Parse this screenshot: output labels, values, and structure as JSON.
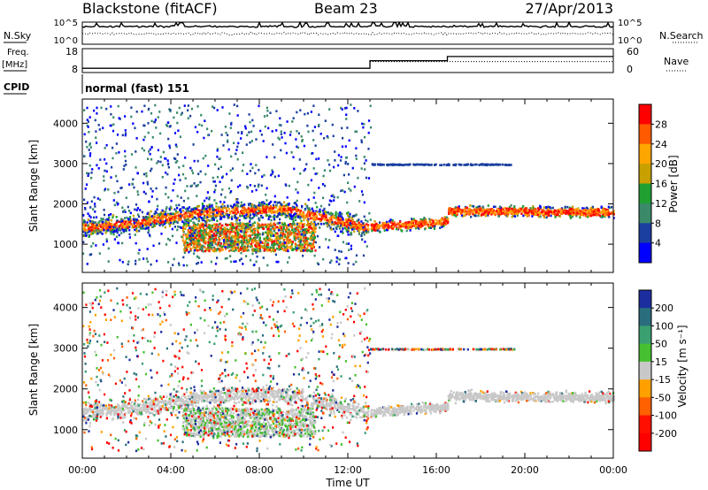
{
  "header": {
    "station": "Blackstone (fitACF)",
    "beam": "Beam 23",
    "date": "27/Apr/2013"
  },
  "labels": {
    "nsky": "N.Sky",
    "nsearch": "N.Search",
    "freq_line1": "Freq.",
    "freq_line2": "[MHz]",
    "nave": "Nave",
    "cpid": "CPID",
    "cpid_value": "normal (fast) 151",
    "noise_tick_top": "10^5",
    "noise_tick_bottom": "10^0",
    "freq_ticks": [
      "18",
      "8"
    ],
    "nave_ticks": [
      "60",
      "0"
    ]
  },
  "chart_data": [
    {
      "type": "line",
      "name": "noise-panel",
      "ylabel_left": "N.Sky",
      "ylabel_right": "N.Search",
      "yscale": "log",
      "ylim": [
        1,
        100000
      ]
    },
    {
      "type": "line",
      "name": "frequency-panel",
      "ylabel_left": "Freq. [MHz]",
      "ylabel_right": "Nave",
      "yticks_left": [
        8,
        18
      ],
      "yticks_right": [
        0,
        60
      ],
      "series": [
        {
          "name": "Freq.",
          "style": "solid",
          "x": [
            0,
            13.0,
            13.0,
            16.5,
            16.5,
            24
          ],
          "y": [
            10,
            10,
            14.5,
            14.5,
            17,
            17
          ]
        },
        {
          "name": "Nave",
          "style": "dotted",
          "x": [
            13.0,
            24
          ],
          "y": [
            14,
            14
          ]
        }
      ]
    },
    {
      "type": "heatmap",
      "name": "power-panel",
      "xlabel": "",
      "ylabel": "Slant Range [km]",
      "xlim": [
        0,
        24
      ],
      "ylim": [
        300,
        4600
      ],
      "yticks": [
        1000,
        2000,
        3000,
        4000
      ],
      "colorbar": {
        "label": "Power [dB]",
        "ticks": [
          "28",
          "24",
          "20",
          "16",
          "12",
          "8",
          "4"
        ],
        "colors": [
          "#ff0000",
          "#ff5a00",
          "#ffa500",
          "#c8a000",
          "#20a030",
          "#3a8a6a",
          "#1a3fa0",
          "#0000ff"
        ]
      }
    },
    {
      "type": "heatmap",
      "name": "velocity-panel",
      "xlabel": "Time UT",
      "ylabel": "Slant Range [km]",
      "xlim": [
        0,
        24
      ],
      "ylim": [
        300,
        4600
      ],
      "xticks": [
        "00:00",
        "04:00",
        "08:00",
        "12:00",
        "16:00",
        "20:00",
        "00:00"
      ],
      "yticks": [
        1000,
        2000,
        3000,
        4000
      ],
      "colorbar": {
        "label": "Velocity [m s⁻¹]",
        "ticks": [
          "200",
          "100",
          "50",
          "15",
          "-15",
          "-50",
          "-100",
          "-200"
        ],
        "colors": [
          "#1c2e9e",
          "#2a6e7e",
          "#3aa070",
          "#46c030",
          "#c8c8c8",
          "#ffa000",
          "#ff6000",
          "#ff1000",
          "#ff0000"
        ]
      }
    }
  ]
}
